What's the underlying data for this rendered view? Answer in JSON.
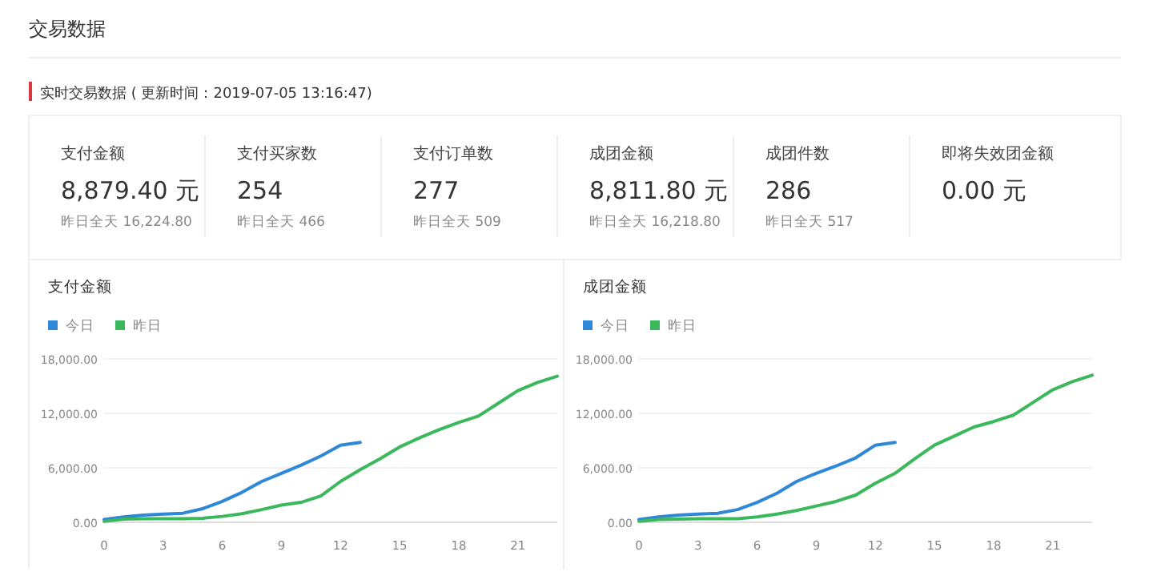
{
  "chart_data": [
    {
      "type": "other",
      "title": "交易数据",
      "subtitle": "实时交易数据 ( 更新时间：2019-07-05 13:16:47)"
    },
    {
      "type": "other",
      "title": "支付金额",
      "annotations": [
        "8,879.40 元",
        "昨日全天 16,224.80"
      ]
    },
    {
      "type": "other",
      "title": "支付买家数",
      "annotations": [
        "254",
        "昨日全天 466"
      ]
    },
    {
      "type": "other",
      "title": "支付订单数",
      "annotations": [
        "277",
        "昨日全天 509"
      ]
    },
    {
      "type": "other",
      "title": "成团金额",
      "annotations": [
        "8,811.80 元",
        "昨日全天 16,218.80"
      ]
    },
    {
      "type": "other",
      "title": "成团件数",
      "annotations": [
        "286",
        "昨日全天 517"
      ]
    },
    {
      "type": "other",
      "title": "即将失效团金额",
      "annotations": [
        "0.00 元"
      ]
    },
    {
      "type": "line",
      "title": "支付金额",
      "legend": "top left",
      "grid": "y",
      "xlim": [
        0,
        23
      ],
      "xticks": [
        0,
        3,
        6,
        9,
        12,
        15,
        18,
        21
      ],
      "ylim": [
        0,
        18000
      ],
      "yticks": [
        {
          "value": 0,
          "label": "0.00"
        },
        {
          "value": 6000,
          "label": "6,000.00"
        },
        {
          "value": 12000,
          "label": "12,000.00"
        },
        {
          "value": 18000,
          "label": "18,000.00"
        }
      ],
      "series": [
        {
          "name": "今日",
          "color": "#2f87d8",
          "x": [
            0,
            1,
            2,
            3,
            4,
            5,
            6,
            7,
            8,
            9,
            10,
            11,
            12,
            13
          ],
          "values": [
            300,
            600,
            800,
            900,
            1000,
            1500,
            2300,
            3300,
            4500,
            5400,
            6300,
            7300,
            8500,
            8800
          ]
        },
        {
          "name": "昨日",
          "color": "#3cb85c",
          "x": [
            0,
            1,
            2,
            3,
            4,
            5,
            6,
            7,
            8,
            9,
            10,
            11,
            12,
            13,
            14,
            15,
            16,
            17,
            18,
            19,
            20,
            21,
            22,
            23
          ],
          "values": [
            100,
            350,
            400,
            400,
            400,
            450,
            650,
            950,
            1400,
            1900,
            2200,
            2900,
            4500,
            5800,
            7000,
            8300,
            9300,
            10200,
            11000,
            11700,
            13100,
            14500,
            15400,
            16100
          ]
        }
      ]
    },
    {
      "type": "line",
      "title": "成团金额",
      "legend": "top left",
      "grid": "y",
      "xlim": [
        0,
        23
      ],
      "xticks": [
        0,
        3,
        6,
        9,
        12,
        15,
        18,
        21
      ],
      "ylim": [
        0,
        18000
      ],
      "yticks": [
        {
          "value": 0,
          "label": "0.00"
        },
        {
          "value": 6000,
          "label": "6,000.00"
        },
        {
          "value": 12000,
          "label": "12,000.00"
        },
        {
          "value": 18000,
          "label": "18,000.00"
        }
      ],
      "series": [
        {
          "name": "今日",
          "color": "#2f87d8",
          "x": [
            0,
            1,
            2,
            3,
            4,
            5,
            6,
            7,
            8,
            9,
            10,
            11,
            12,
            13
          ],
          "values": [
            300,
            600,
            800,
            900,
            1000,
            1400,
            2200,
            3200,
            4500,
            5400,
            6200,
            7100,
            8500,
            8800
          ]
        },
        {
          "name": "昨日",
          "color": "#3cb85c",
          "x": [
            0,
            1,
            2,
            3,
            4,
            5,
            6,
            7,
            8,
            9,
            10,
            11,
            12,
            13,
            14,
            15,
            16,
            17,
            18,
            19,
            20,
            21,
            22,
            23
          ],
          "values": [
            100,
            300,
            350,
            400,
            400,
            400,
            600,
            900,
            1300,
            1800,
            2300,
            3000,
            4300,
            5400,
            7000,
            8500,
            9500,
            10500,
            11100,
            11800,
            13200,
            14600,
            15500,
            16200
          ]
        }
      ]
    }
  ]
}
